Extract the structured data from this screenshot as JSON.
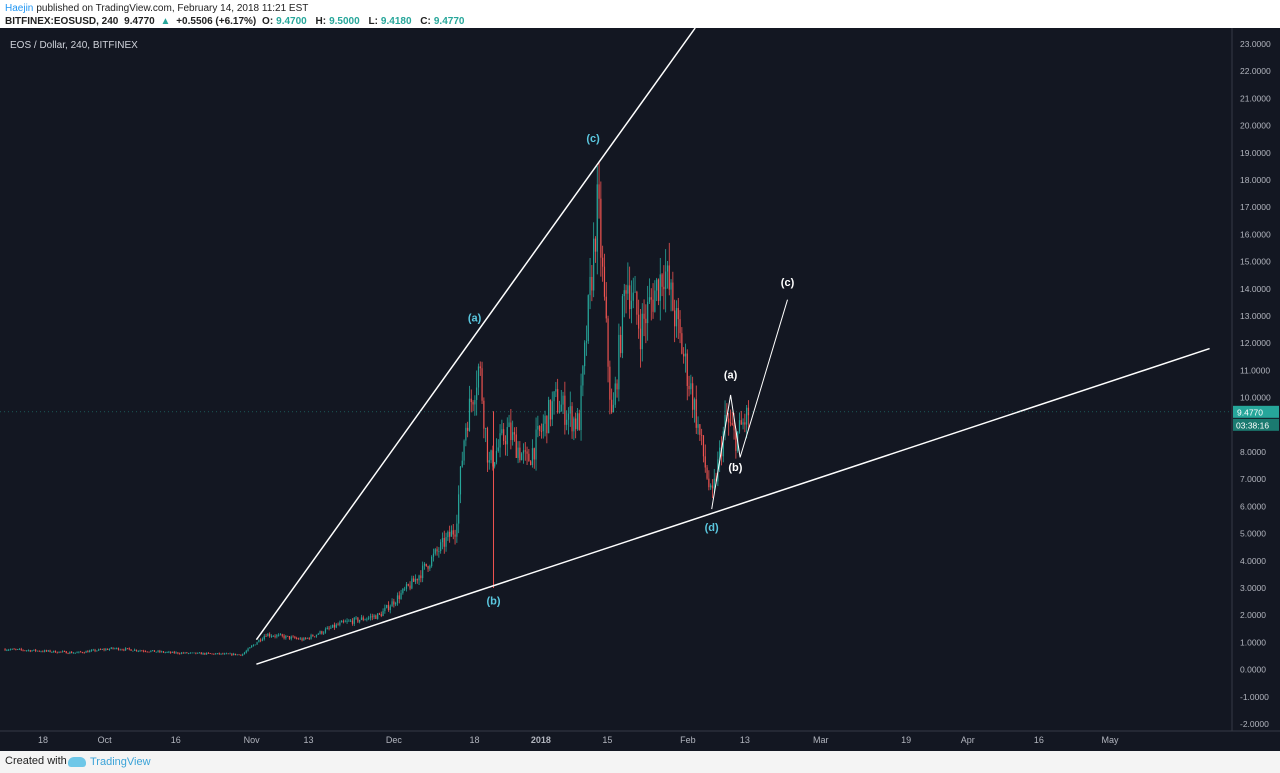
{
  "header": {
    "author": "Haejin",
    "published_text": "published on TradingView.com, February 14, 2018 11:21 EST",
    "ticker": "BITFINEX:EOSUSD, 240",
    "last": "9.4770",
    "change_arrow": "▲",
    "change": "+0.5506 (+6.17%)",
    "open_label": "O:",
    "open": "9.4700",
    "high_label": "H:",
    "high": "9.5000",
    "low_label": "L:",
    "low": "9.4180",
    "close_label": "C:",
    "close": "9.4770"
  },
  "chart_title": "EOS / Dollar, 240, BITFINEX",
  "footer": {
    "created_with": "Created with",
    "brand": "TradingView"
  },
  "colors": {
    "background": "#131722",
    "up": "#26a69a",
    "down": "#ef5350",
    "axis_text": "#b2b5be",
    "trendline": "#ffffff",
    "cyan_label": "#5bc8e0",
    "white_label": "#ffffff"
  },
  "chart_data": {
    "type": "candlestick",
    "symbol": "EOS / Dollar",
    "interval": "240",
    "exchange": "BITFINEX",
    "x_axis_labels": [
      "18",
      "Oct",
      "16",
      "Nov",
      "13",
      "Dec",
      "18",
      "2018",
      "15",
      "Feb",
      "13",
      "Mar",
      "19",
      "Apr",
      "16",
      "May"
    ],
    "x_axis_dates": [
      "2017-09-18",
      "2017-10-01",
      "2017-10-16",
      "2017-11-01",
      "2017-11-13",
      "2017-12-01",
      "2017-12-18",
      "2018-01-01",
      "2018-01-15",
      "2018-02-01",
      "2018-02-13",
      "2018-03-01",
      "2018-03-19",
      "2018-04-01",
      "2018-04-16",
      "2018-05-01"
    ],
    "y_axis_labels": [
      "23.0000",
      "22.0000",
      "21.0000",
      "20.0000",
      "19.0000",
      "18.0000",
      "17.0000",
      "16.0000",
      "15.0000",
      "14.0000",
      "13.0000",
      "12.0000",
      "11.0000",
      "10.0000",
      "9.0000",
      "8.0000",
      "7.0000",
      "6.0000",
      "5.0000",
      "4.0000",
      "3.0000",
      "2.0000",
      "1.0000",
      "0.0000",
      "-1.0000",
      "-2.0000"
    ],
    "y_range": [
      -2.2,
      23.8
    ],
    "last_price": 9.477,
    "last_price_label": "9.4770",
    "countdown_label": "03:38:16",
    "price_path": [
      {
        "date": "2017-09-10",
        "price": 0.75
      },
      {
        "date": "2017-09-25",
        "price": 0.62
      },
      {
        "date": "2017-10-03",
        "price": 0.78
      },
      {
        "date": "2017-10-15",
        "price": 0.62
      },
      {
        "date": "2017-10-30",
        "price": 0.55
      },
      {
        "date": "2017-11-04",
        "price": 1.3
      },
      {
        "date": "2017-11-12",
        "price": 1.1
      },
      {
        "date": "2017-11-20",
        "price": 1.7
      },
      {
        "date": "2017-11-28",
        "price": 2.0
      },
      {
        "date": "2017-12-05",
        "price": 3.2
      },
      {
        "date": "2017-12-10",
        "price": 4.3
      },
      {
        "date": "2017-12-14",
        "price": 5.2
      },
      {
        "date": "2017-12-16",
        "price": 8.9
      },
      {
        "date": "2017-12-19",
        "price": 11.2
      },
      {
        "date": "2017-12-21",
        "price": 7.5
      },
      {
        "date": "2017-12-25",
        "price": 8.8
      },
      {
        "date": "2017-12-29",
        "price": 7.6
      },
      {
        "date": "2018-01-04",
        "price": 9.9
      },
      {
        "date": "2018-01-09",
        "price": 9.0
      },
      {
        "date": "2018-01-13",
        "price": 17.2
      },
      {
        "date": "2018-01-16",
        "price": 9.0
      },
      {
        "date": "2018-01-19",
        "price": 14.5
      },
      {
        "date": "2018-01-22",
        "price": 12.5
      },
      {
        "date": "2018-01-27",
        "price": 14.8
      },
      {
        "date": "2018-02-02",
        "price": 10.0
      },
      {
        "date": "2018-02-06",
        "price": 6.2
      },
      {
        "date": "2018-02-09",
        "price": 9.2
      },
      {
        "date": "2018-02-11",
        "price": 8.5
      },
      {
        "date": "2018-02-14",
        "price": 9.48
      }
    ],
    "spike_lows": [
      {
        "date": "2017-12-22",
        "price": 3.0
      }
    ],
    "trendlines": [
      {
        "name": "upper",
        "points": [
          {
            "date": "2017-11-02",
            "price": 1.1
          },
          {
            "date": "2018-01-13",
            "price": 18.6
          }
        ]
      },
      {
        "name": "lower",
        "points": [
          {
            "date": "2017-11-02",
            "price": 0.2
          },
          {
            "date": "2018-05-22",
            "price": 11.8
          }
        ]
      },
      {
        "name": "projection",
        "points": [
          {
            "date": "2018-02-06",
            "price": 5.9
          },
          {
            "date": "2018-02-10",
            "price": 10.1
          },
          {
            "date": "2018-02-12",
            "price": 7.8
          },
          {
            "date": "2018-02-22",
            "price": 13.6
          }
        ]
      }
    ],
    "annotations": [
      {
        "text": "(a)",
        "date": "2017-12-18",
        "price": 12.8,
        "color": "cyan"
      },
      {
        "text": "(b)",
        "date": "2017-12-22",
        "price": 2.4,
        "color": "cyan"
      },
      {
        "text": "(c)",
        "date": "2018-01-12",
        "price": 19.4,
        "color": "cyan"
      },
      {
        "text": "(d)",
        "date": "2018-02-06",
        "price": 5.1,
        "color": "cyan"
      },
      {
        "text": "(a)",
        "date": "2018-02-10",
        "price": 10.7,
        "color": "white"
      },
      {
        "text": "(b)",
        "date": "2018-02-11",
        "price": 7.3,
        "color": "white"
      },
      {
        "text": "(c)",
        "date": "2018-02-22",
        "price": 14.1,
        "color": "white"
      }
    ]
  }
}
